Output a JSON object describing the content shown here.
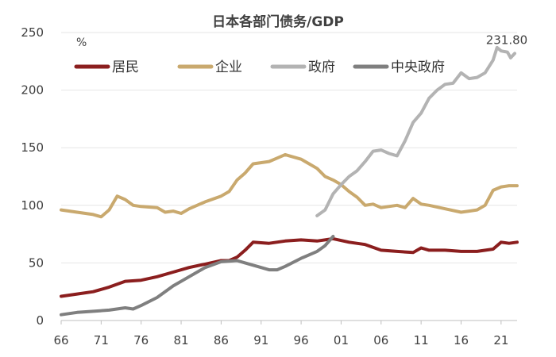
{
  "chart_data": {
    "type": "line",
    "title": "日本各部门债务/GDP",
    "ylabel": "%",
    "xlabel": "",
    "ylim": [
      0,
      250
    ],
    "xlim": [
      1966,
      2023
    ],
    "yticks": [
      0,
      50,
      100,
      150,
      200,
      250
    ],
    "xticks": [
      {
        "year": 1966,
        "label": "66"
      },
      {
        "year": 1971,
        "label": "71"
      },
      {
        "year": 1976,
        "label": "76"
      },
      {
        "year": 1981,
        "label": "81"
      },
      {
        "year": 1986,
        "label": "86"
      },
      {
        "year": 1991,
        "label": "91"
      },
      {
        "year": 1996,
        "label": "96"
      },
      {
        "year": 2001,
        "label": "01"
      },
      {
        "year": 2006,
        "label": "06"
      },
      {
        "year": 2011,
        "label": "11"
      },
      {
        "year": 2016,
        "label": "16"
      },
      {
        "year": 2021,
        "label": "21"
      }
    ],
    "annotation": {
      "text": "231.80",
      "x": 2022.7,
      "y": 231.8
    },
    "series": [
      {
        "name": "居民",
        "color": "#8b1e1e",
        "points": [
          [
            1966,
            21
          ],
          [
            1968,
            23
          ],
          [
            1970,
            25
          ],
          [
            1972,
            29
          ],
          [
            1974,
            34
          ],
          [
            1976,
            35
          ],
          [
            1978,
            38
          ],
          [
            1980,
            42
          ],
          [
            1982,
            46
          ],
          [
            1984,
            49
          ],
          [
            1986,
            52
          ],
          [
            1987,
            52
          ],
          [
            1988,
            55
          ],
          [
            1989,
            61
          ],
          [
            1990,
            68
          ],
          [
            1992,
            67
          ],
          [
            1994,
            69
          ],
          [
            1996,
            70
          ],
          [
            1998,
            69
          ],
          [
            2000,
            71
          ],
          [
            2002,
            68
          ],
          [
            2004,
            66
          ],
          [
            2006,
            61
          ],
          [
            2008,
            60
          ],
          [
            2010,
            59
          ],
          [
            2011,
            63
          ],
          [
            2012,
            61
          ],
          [
            2014,
            61
          ],
          [
            2016,
            60
          ],
          [
            2018,
            60
          ],
          [
            2020,
            62
          ],
          [
            2021,
            68
          ],
          [
            2022,
            67
          ],
          [
            2023,
            68
          ]
        ]
      },
      {
        "name": "企业",
        "color": "#c9a96e",
        "points": [
          [
            1966,
            96
          ],
          [
            1968,
            94
          ],
          [
            1970,
            92
          ],
          [
            1971,
            90
          ],
          [
            1972,
            96
          ],
          [
            1973,
            108
          ],
          [
            1974,
            105
          ],
          [
            1975,
            100
          ],
          [
            1976,
            99
          ],
          [
            1978,
            98
          ],
          [
            1979,
            94
          ],
          [
            1980,
            95
          ],
          [
            1981,
            93
          ],
          [
            1982,
            97
          ],
          [
            1984,
            103
          ],
          [
            1986,
            108
          ],
          [
            1987,
            112
          ],
          [
            1988,
            122
          ],
          [
            1989,
            128
          ],
          [
            1990,
            136
          ],
          [
            1992,
            138
          ],
          [
            1993,
            141
          ],
          [
            1994,
            144
          ],
          [
            1995,
            142
          ],
          [
            1996,
            140
          ],
          [
            1997,
            136
          ],
          [
            1998,
            132
          ],
          [
            1999,
            125
          ],
          [
            2000,
            122
          ],
          [
            2001,
            118
          ],
          [
            2002,
            112
          ],
          [
            2003,
            107
          ],
          [
            2004,
            100
          ],
          [
            2005,
            101
          ],
          [
            2006,
            98
          ],
          [
            2008,
            100
          ],
          [
            2009,
            98
          ],
          [
            2010,
            106
          ],
          [
            2011,
            101
          ],
          [
            2012,
            100
          ],
          [
            2014,
            97
          ],
          [
            2016,
            94
          ],
          [
            2017,
            95
          ],
          [
            2018,
            96
          ],
          [
            2019,
            100
          ],
          [
            2020,
            113
          ],
          [
            2021,
            116
          ],
          [
            2022,
            117
          ],
          [
            2023,
            117
          ]
        ]
      },
      {
        "name": "政府",
        "color": "#b3b3b3",
        "points": [
          [
            1998,
            91
          ],
          [
            1999,
            96
          ],
          [
            2000,
            110
          ],
          [
            2001,
            118
          ],
          [
            2002,
            125
          ],
          [
            2003,
            130
          ],
          [
            2004,
            138
          ],
          [
            2005,
            147
          ],
          [
            2006,
            148
          ],
          [
            2007,
            145
          ],
          [
            2008,
            143
          ],
          [
            2009,
            156
          ],
          [
            2010,
            172
          ],
          [
            2011,
            180
          ],
          [
            2012,
            193
          ],
          [
            2013,
            200
          ],
          [
            2014,
            205
          ],
          [
            2015,
            206
          ],
          [
            2016,
            215
          ],
          [
            2017,
            210
          ],
          [
            2018,
            211
          ],
          [
            2019,
            215
          ],
          [
            2020,
            226
          ],
          [
            2020.5,
            237
          ],
          [
            2021,
            234
          ],
          [
            2021.8,
            233
          ],
          [
            2022.2,
            228
          ],
          [
            2022.7,
            231.8
          ]
        ]
      },
      {
        "name": "中央政府",
        "color": "#7f7f7f",
        "points": [
          [
            1966,
            5
          ],
          [
            1968,
            7
          ],
          [
            1970,
            8
          ],
          [
            1972,
            9
          ],
          [
            1974,
            11
          ],
          [
            1975,
            10
          ],
          [
            1976,
            13
          ],
          [
            1978,
            20
          ],
          [
            1980,
            30
          ],
          [
            1982,
            38
          ],
          [
            1984,
            46
          ],
          [
            1986,
            51
          ],
          [
            1988,
            52
          ],
          [
            1989,
            50
          ],
          [
            1990,
            48
          ],
          [
            1991,
            46
          ],
          [
            1992,
            44
          ],
          [
            1993,
            44
          ],
          [
            1994,
            47
          ],
          [
            1996,
            54
          ],
          [
            1998,
            60
          ],
          [
            1999,
            65
          ],
          [
            2000,
            73
          ]
        ]
      }
    ]
  }
}
